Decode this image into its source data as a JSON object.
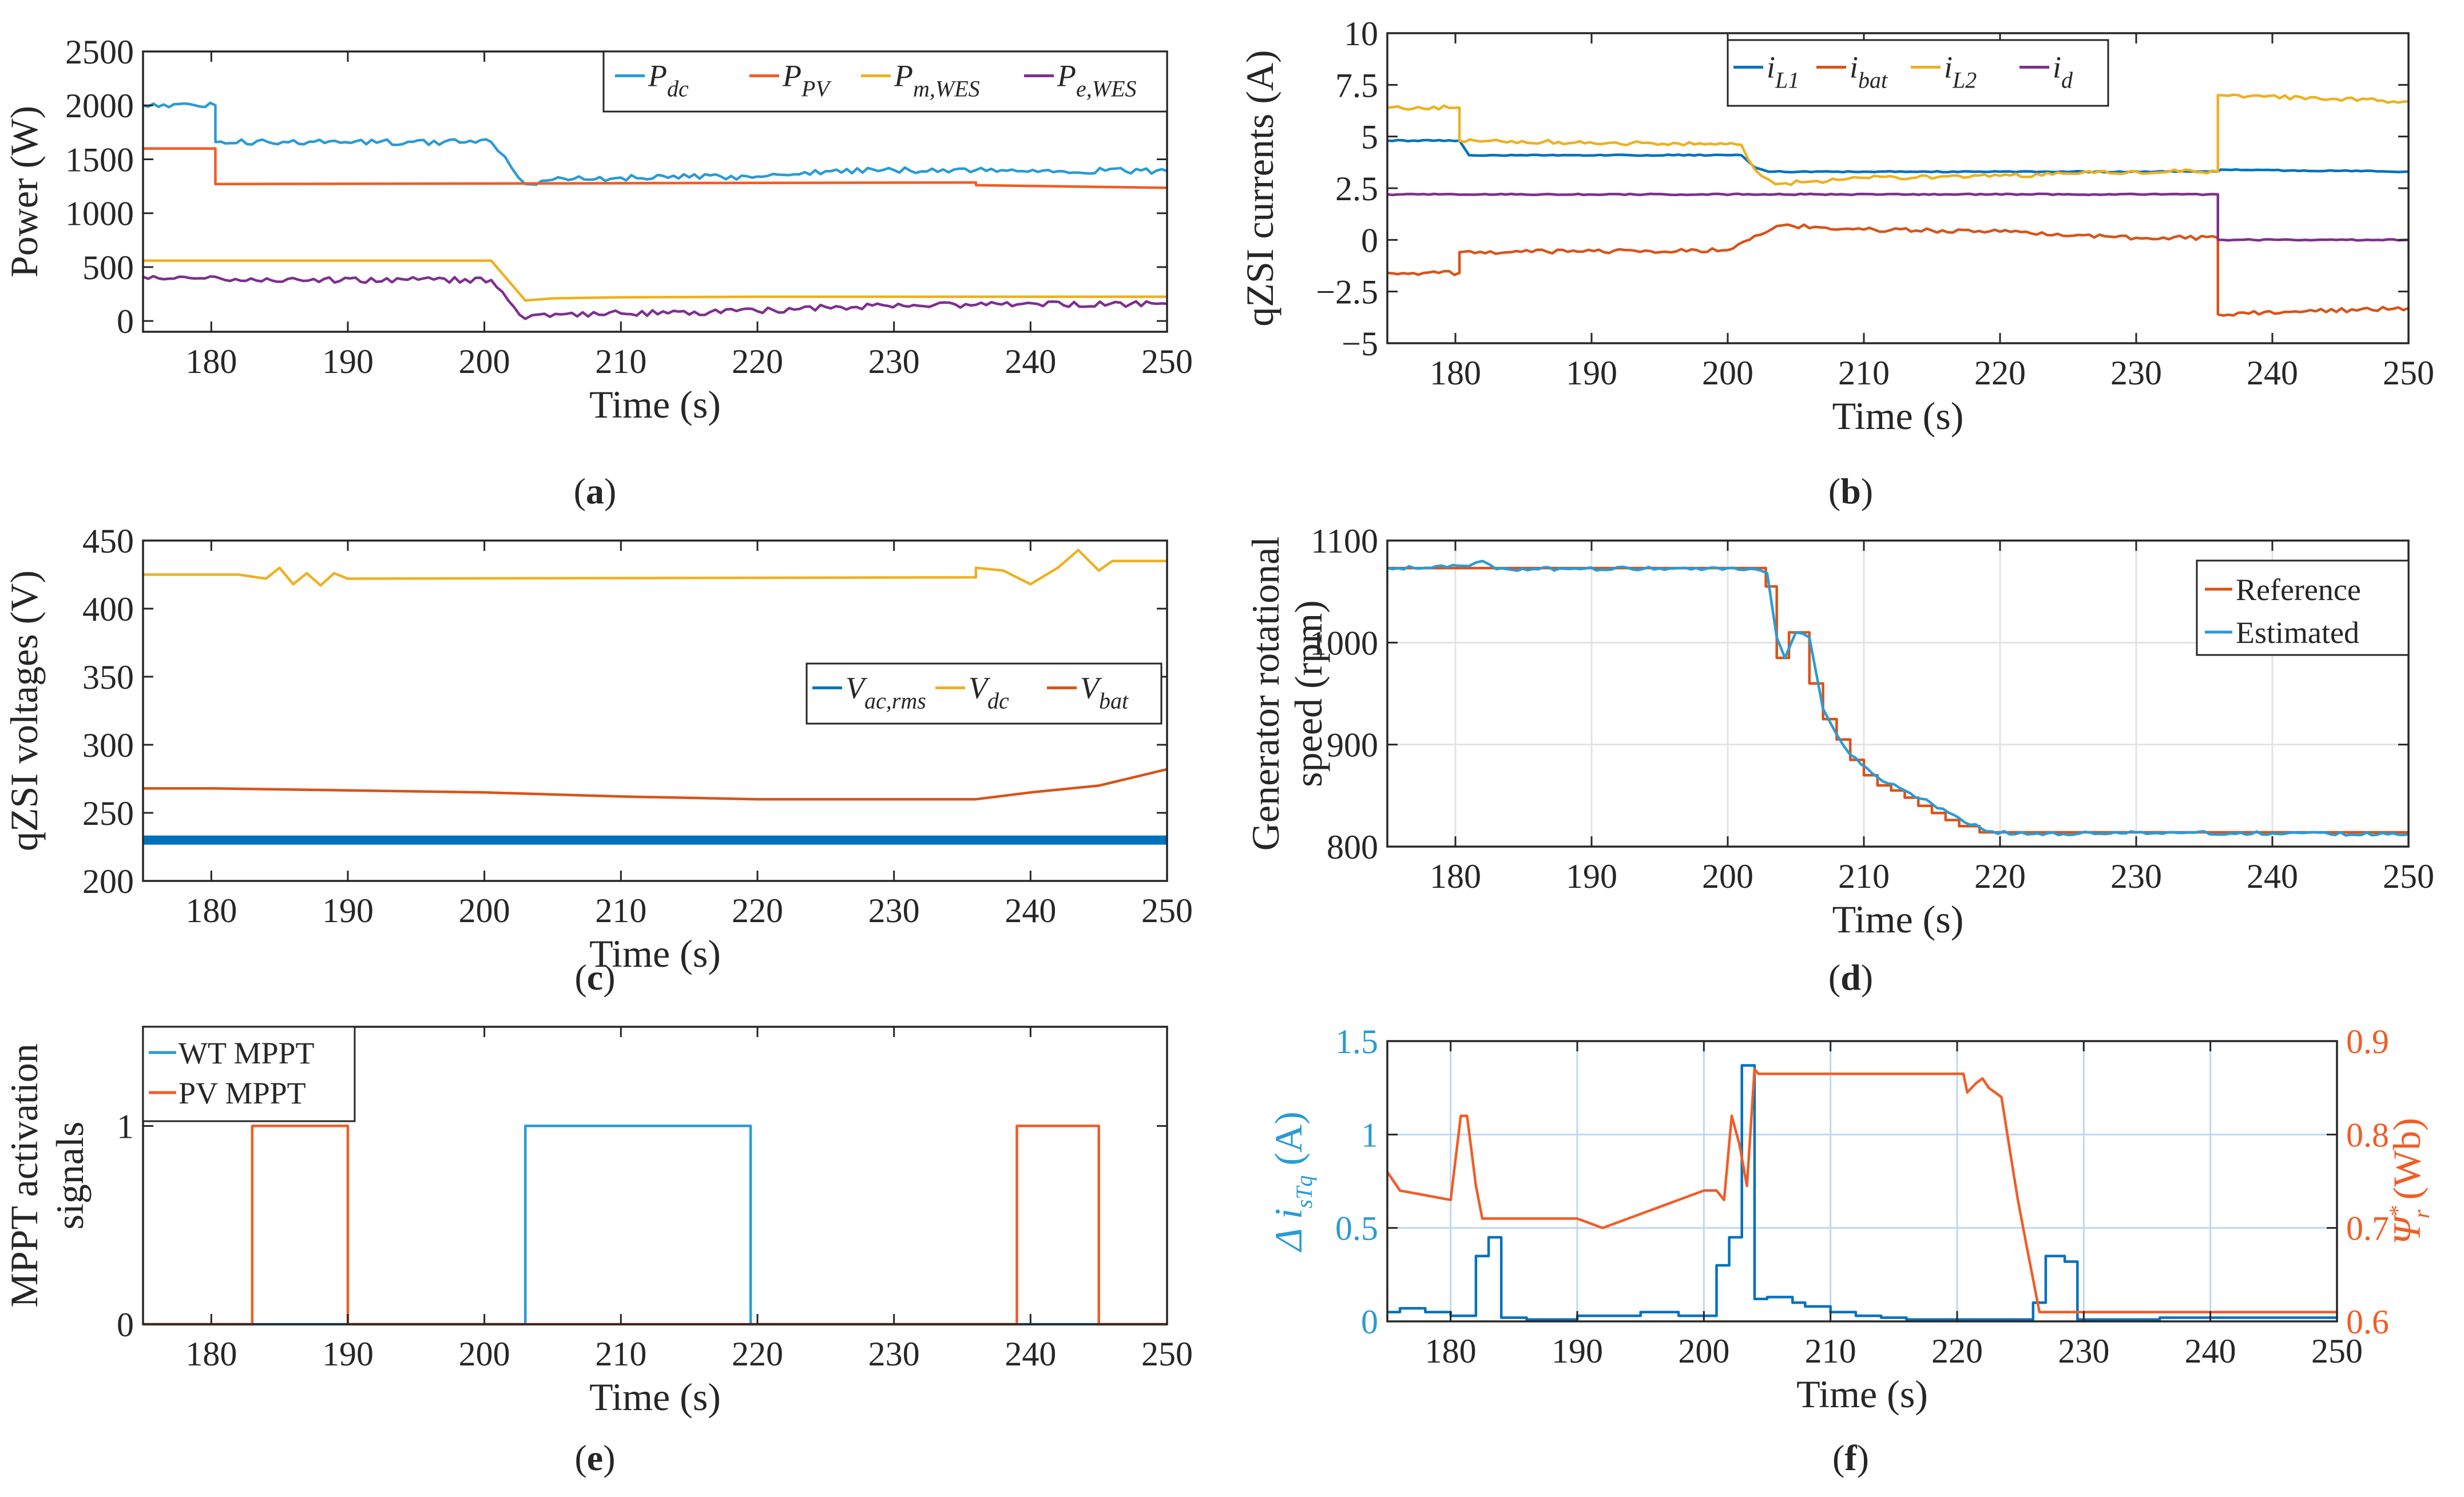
{
  "colors": {
    "c1": "#0072BD",
    "c2": "#D95319",
    "c3": "#EDB120",
    "c4": "#7E2F8E",
    "c1f": "#2A9BD4",
    "c2f": "#F25C26"
  },
  "chart_data": [
    {
      "type": "line",
      "panel_label": "a",
      "xlabel": "Time (s)",
      "ylabel": "Power (W)",
      "xlim": [
        175,
        250
      ],
      "ylim": [
        -100,
        2500
      ],
      "xticks": [
        "180",
        "190",
        "200",
        "210",
        "220",
        "230",
        "240",
        "250"
      ],
      "yticks": [
        "0",
        "500",
        "1000",
        "1500",
        "2000",
        "2500"
      ],
      "grid": false,
      "legend": [
        {
          "base": "P",
          "sub": "dc"
        },
        {
          "base": "P",
          "sub": "PV"
        },
        {
          "base": "P",
          "sub": "m,WES"
        },
        {
          "base": "P",
          "sub": "e,WES"
        }
      ],
      "series": [
        {
          "name": "P_dc",
          "color": "#2A9BD4",
          "x": [
            175,
            180.3,
            180.3,
            200.5,
            202,
            203,
            205,
            210,
            220,
            225,
            230,
            236,
            250
          ],
          "y": [
            2000,
            2000,
            1660,
            1660,
            1420,
            1270,
            1310,
            1330,
            1340,
            1390,
            1400,
            1400,
            1390
          ]
        },
        {
          "name": "P_PV",
          "color": "#F25C26",
          "x": [
            175,
            180.3,
            180.3,
            236,
            236,
            250
          ],
          "y": [
            1600,
            1600,
            1270,
            1285,
            1260,
            1235
          ]
        },
        {
          "name": "P_m,WES",
          "color": "#EDB120",
          "x": [
            175,
            200.5,
            203,
            205,
            210,
            220,
            250
          ],
          "y": [
            560,
            560,
            190,
            210,
            220,
            225,
            225
          ]
        },
        {
          "name": "P_e,WES",
          "color": "#7E2F8E",
          "x": [
            175,
            180.3,
            181,
            200.5,
            203,
            204,
            210,
            220,
            225,
            236,
            250
          ],
          "y": [
            410,
            410,
            380,
            380,
            20,
            60,
            70,
            90,
            130,
            150,
            160
          ]
        }
      ]
    },
    {
      "type": "line",
      "panel_label": "b",
      "xlabel": "Time (s)",
      "ylabel": "qZSI currents (A)",
      "xlim": [
        175,
        250
      ],
      "ylim": [
        -5,
        10
      ],
      "xticks": [
        "180",
        "190",
        "200",
        "210",
        "220",
        "230",
        "240",
        "250"
      ],
      "yticks": [
        "−5",
        "−2.5",
        "0",
        "2.5",
        "5",
        "7.5",
        "10"
      ],
      "grid": false,
      "legend": [
        {
          "base": "i",
          "sub": "L1"
        },
        {
          "base": "i",
          "sub": "bat"
        },
        {
          "base": "i",
          "sub": "L2"
        },
        {
          "base": "i",
          "sub": "d"
        }
      ],
      "series": [
        {
          "name": "i_L1",
          "color": "#0072BD",
          "x": [
            175,
            180.3,
            181,
            201,
            202,
            203,
            210,
            220,
            236,
            236.2,
            250
          ],
          "y": [
            4.8,
            4.8,
            4.1,
            4.1,
            3.5,
            3.3,
            3.3,
            3.3,
            3.3,
            3.4,
            3.3
          ]
        },
        {
          "name": "i_bat",
          "color": "#D95319",
          "x": [
            175,
            180.3,
            180.3,
            200,
            202,
            204,
            210,
            220,
            230,
            236,
            236,
            250
          ],
          "y": [
            -1.6,
            -1.6,
            -0.6,
            -0.5,
            0.2,
            0.7,
            0.5,
            0.4,
            0.1,
            0.1,
            -3.6,
            -3.3
          ]
        },
        {
          "name": "i_L2",
          "color": "#EDB120",
          "x": [
            175,
            180.3,
            180.3,
            201,
            202,
            203.5,
            210,
            220,
            230,
            236,
            236,
            250
          ],
          "y": [
            6.4,
            6.4,
            4.8,
            4.6,
            3.4,
            2.7,
            3.0,
            3.1,
            3.3,
            3.3,
            7.0,
            6.7
          ]
        },
        {
          "name": "i_d",
          "color": "#7E2F8E",
          "x": [
            175,
            236,
            236,
            250
          ],
          "y": [
            2.2,
            2.2,
            0,
            0
          ]
        }
      ]
    },
    {
      "type": "line",
      "panel_label": "c",
      "xlabel": "Time (s)",
      "ylabel": "qZSI voltages (V)",
      "xlim": [
        175,
        250
      ],
      "ylim": [
        200,
        450
      ],
      "xticks": [
        "180",
        "190",
        "200",
        "210",
        "220",
        "230",
        "240",
        "250"
      ],
      "yticks": [
        "200",
        "250",
        "300",
        "350",
        "400",
        "450"
      ],
      "grid": false,
      "legend": [
        {
          "base": "V",
          "sub": "ac,rms"
        },
        {
          "base": "V",
          "sub": "dc"
        },
        {
          "base": "V",
          "sub": "bat"
        }
      ],
      "series": [
        {
          "name": "V_ac,rms",
          "color": "#0072BD",
          "x": [
            175,
            236,
            236,
            250
          ],
          "y": [
            230,
            230,
            230,
            230
          ]
        },
        {
          "name": "V_dc",
          "color": "#EDB120",
          "x": [
            175,
            182,
            184,
            185,
            186,
            187,
            188,
            189,
            190,
            236,
            236,
            238,
            240,
            242,
            243.5,
            245,
            246,
            250
          ],
          "y": [
            425,
            425,
            422,
            430,
            418,
            426,
            417,
            426,
            422,
            423,
            430,
            428,
            418,
            430,
            443,
            428,
            435,
            435
          ]
        },
        {
          "name": "V_bat",
          "color": "#D95319",
          "x": [
            175,
            180,
            200,
            210,
            220,
            236,
            240,
            245,
            250
          ],
          "y": [
            268,
            268,
            265,
            262,
            260,
            260,
            265,
            270,
            282
          ]
        }
      ]
    },
    {
      "type": "line",
      "panel_label": "d",
      "xlabel": "Time (s)",
      "ylabel": "Generator rotational speed (rpm)",
      "xlim": [
        175,
        250
      ],
      "ylim": [
        800,
        1100
      ],
      "xticks": [
        "180",
        "190",
        "200",
        "210",
        "220",
        "230",
        "240",
        "250"
      ],
      "yticks": [
        "800",
        "900",
        "1000",
        "1100"
      ],
      "grid": true,
      "legend": [
        {
          "base": "Reference",
          "sub": ""
        },
        {
          "base": "Estimated",
          "sub": ""
        }
      ],
      "series": [
        {
          "name": "Reference",
          "color": "#D95319",
          "x": [
            175,
            202.8,
            202.8,
            203.6,
            203.6,
            204.5,
            204.5,
            206,
            206,
            207,
            207,
            208,
            208,
            209,
            209,
            210,
            210,
            211,
            211,
            212,
            212,
            213,
            213,
            214,
            214,
            215,
            215,
            216,
            216,
            217,
            217,
            218.5,
            218.5,
            250
          ],
          "y": [
            1073,
            1073,
            1055,
            1055,
            985,
            985,
            1010,
            1010,
            960,
            960,
            925,
            925,
            905,
            905,
            885,
            885,
            870,
            870,
            860,
            860,
            855,
            855,
            848,
            848,
            840,
            840,
            833,
            833,
            826,
            826,
            820,
            820,
            814,
            814
          ]
        },
        {
          "name": "Estimated",
          "color": "#2A9BD4",
          "x": [
            175,
            181,
            182,
            183,
            200,
            202,
            202.9,
            203.6,
            204.2,
            205,
            206,
            207,
            208,
            209,
            211,
            213,
            215,
            217,
            219,
            222,
            230,
            240,
            250
          ],
          "y": [
            1073,
            1075,
            1080,
            1072,
            1073,
            1072,
            1068,
            1005,
            985,
            1010,
            1005,
            935,
            910,
            890,
            868,
            855,
            842,
            828,
            815,
            812,
            814,
            813,
            812
          ]
        }
      ]
    },
    {
      "type": "line",
      "panel_label": "e",
      "xlabel": "Time (s)",
      "ylabel": "MPPT activation signals",
      "xlim": [
        175,
        250
      ],
      "ylim": [
        0,
        1.5
      ],
      "xticks": [
        "180",
        "190",
        "200",
        "210",
        "220",
        "230",
        "240",
        "250"
      ],
      "yticks": [
        "0",
        "1"
      ],
      "grid": false,
      "legend": [
        {
          "base": "WT MPPT",
          "sub": ""
        },
        {
          "base": "PV MPPT",
          "sub": ""
        }
      ],
      "series": [
        {
          "name": "WT MPPT",
          "color": "#2A9BD4",
          "x": [
            175,
            203,
            203,
            219.5,
            219.5,
            250
          ],
          "y": [
            0,
            0,
            1,
            1,
            0,
            0
          ]
        },
        {
          "name": "PV MPPT",
          "color": "#F25C26",
          "x": [
            175,
            183,
            183,
            190,
            190,
            239,
            239,
            245,
            245,
            250
          ],
          "y": [
            0,
            0,
            1,
            1,
            0,
            0,
            1,
            1,
            0,
            0
          ]
        }
      ]
    },
    {
      "type": "line",
      "panel_label": "f",
      "xlabel": "Time (s)",
      "ylabel_left": {
        "pre": "Δ i",
        "sub": "sTq",
        "post": " (A)"
      },
      "ylabel_right": {
        "pre": "Ψ",
        "sup": "*",
        "sub": "r",
        "post": " (Wb)"
      },
      "xlim": [
        175,
        250
      ],
      "ylim_left": [
        0,
        1.5
      ],
      "ylim_right": [
        0.6,
        0.9
      ],
      "xticks": [
        "180",
        "190",
        "200",
        "210",
        "220",
        "230",
        "240",
        "250"
      ],
      "yticks_left": [
        "0",
        "0.5",
        "1",
        "1.5"
      ],
      "yticks_right": [
        "0.6",
        "0.7",
        "0.8",
        "0.9"
      ],
      "grid": true,
      "series": [
        {
          "name": "Δ i_sTq",
          "axis": "left",
          "color": "#0072BD",
          "x": [
            175,
            176,
            176,
            178,
            178,
            180,
            180,
            182,
            182,
            183,
            183,
            184,
            184,
            186,
            186,
            190,
            190,
            195,
            195,
            198,
            198,
            201,
            201,
            202,
            202,
            203,
            203,
            203.3,
            203.3,
            204,
            204,
            205,
            205,
            207,
            207,
            208,
            208,
            210,
            210,
            212,
            212,
            214,
            214,
            216,
            216,
            226,
            226,
            227,
            227,
            228.5,
            228.5,
            229.5,
            229.5,
            236,
            236,
            250
          ],
          "y": [
            0.05,
            0.05,
            0.07,
            0.07,
            0.05,
            0.05,
            0.03,
            0.03,
            0.35,
            0.35,
            0.45,
            0.45,
            0.02,
            0.02,
            0.01,
            0.01,
            0.03,
            0.03,
            0.05,
            0.05,
            0.03,
            0.03,
            0.3,
            0.3,
            0.45,
            0.45,
            1.37,
            1.37,
            1.37,
            1.37,
            0.12,
            0.12,
            0.13,
            0.13,
            0.1,
            0.1,
            0.08,
            0.08,
            0.05,
            0.05,
            0.03,
            0.03,
            0.02,
            0.02,
            0.01,
            0.01,
            0.1,
            0.1,
            0.35,
            0.35,
            0.32,
            0.32,
            0.01,
            0.01,
            0.02,
            0.02
          ]
        },
        {
          "name": "Ψ*_r",
          "axis": "right",
          "color": "#F25C26",
          "x": [
            175,
            176,
            178,
            180,
            180.8,
            181.3,
            182,
            182.5,
            190,
            192,
            195,
            198,
            200,
            201,
            201.6,
            202.2,
            202.8,
            203.4,
            204,
            204.3,
            213,
            220.5,
            220.8,
            221.5,
            222,
            222.5,
            223.5,
            224.2,
            224.8,
            225.5,
            226.5,
            250
          ],
          "y": [
            0.76,
            0.74,
            0.735,
            0.73,
            0.82,
            0.82,
            0.745,
            0.71,
            0.71,
            0.7,
            0.715,
            0.73,
            0.74,
            0.74,
            0.73,
            0.82,
            0.79,
            0.745,
            0.87,
            0.865,
            0.865,
            0.865,
            0.845,
            0.855,
            0.86,
            0.85,
            0.84,
            0.78,
            0.73,
            0.68,
            0.61,
            0.61
          ]
        }
      ]
    }
  ]
}
